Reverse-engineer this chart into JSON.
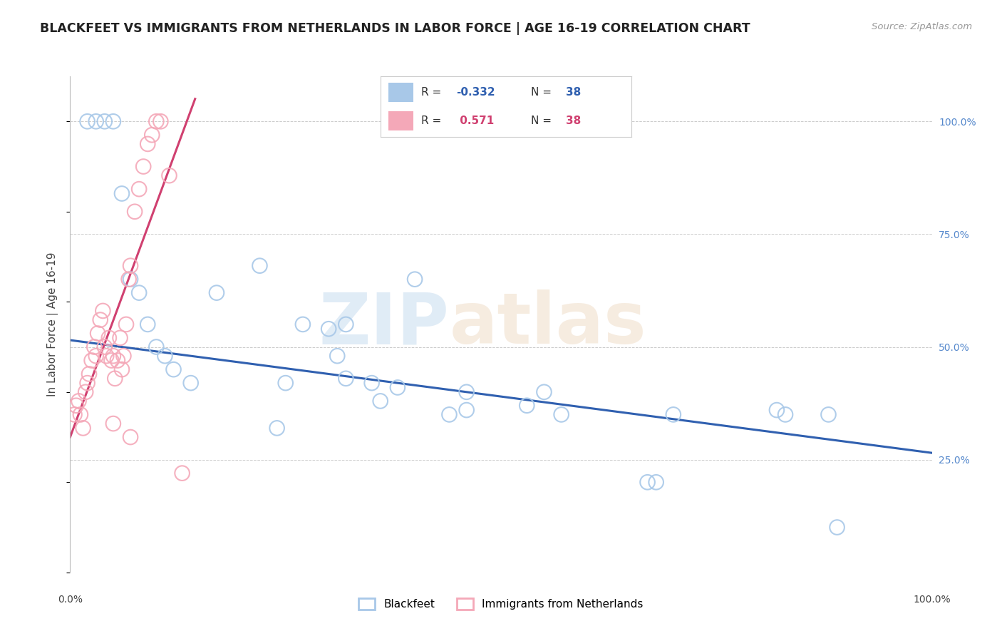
{
  "title": "BLACKFEET VS IMMIGRANTS FROM NETHERLANDS IN LABOR FORCE | AGE 16-19 CORRELATION CHART",
  "source": "Source: ZipAtlas.com",
  "ylabel": "In Labor Force | Age 16-19",
  "watermark_zip": "ZIP",
  "watermark_atlas": "atlas",
  "r_blue": "-0.332",
  "r_pink": "0.571",
  "n_blue": "38",
  "n_pink": "38",
  "legend_series": [
    {
      "name": "Blackfeet",
      "color": "#a8c8e8"
    },
    {
      "name": "Immigrants from Netherlands",
      "color": "#f4a8b8"
    }
  ],
  "blue_scatter_x": [
    0.02,
    0.03,
    0.04,
    0.05,
    0.06,
    0.07,
    0.08,
    0.09,
    0.1,
    0.11,
    0.12,
    0.14,
    0.17,
    0.22,
    0.27,
    0.3,
    0.31,
    0.32,
    0.36,
    0.4,
    0.44,
    0.46,
    0.53,
    0.57,
    0.7,
    0.82,
    0.83,
    0.88,
    0.89,
    0.35,
    0.55,
    0.67,
    0.68,
    0.24,
    0.25,
    0.38,
    0.32,
    0.46
  ],
  "blue_scatter_y": [
    1.0,
    1.0,
    1.0,
    1.0,
    0.84,
    0.65,
    0.62,
    0.55,
    0.5,
    0.48,
    0.45,
    0.42,
    0.62,
    0.68,
    0.55,
    0.54,
    0.48,
    0.43,
    0.38,
    0.65,
    0.35,
    0.4,
    0.37,
    0.35,
    0.35,
    0.36,
    0.35,
    0.35,
    0.1,
    0.42,
    0.4,
    0.2,
    0.2,
    0.32,
    0.42,
    0.41,
    0.55,
    0.36
  ],
  "pink_scatter_x": [
    0.005,
    0.007,
    0.01,
    0.012,
    0.015,
    0.018,
    0.02,
    0.022,
    0.025,
    0.028,
    0.03,
    0.032,
    0.035,
    0.038,
    0.04,
    0.042,
    0.045,
    0.048,
    0.05,
    0.052,
    0.055,
    0.058,
    0.06,
    0.062,
    0.065,
    0.068,
    0.07,
    0.075,
    0.08,
    0.085,
    0.09,
    0.095,
    0.1,
    0.105,
    0.115,
    0.13,
    0.05,
    0.07
  ],
  "pink_scatter_y": [
    0.35,
    0.37,
    0.38,
    0.35,
    0.32,
    0.4,
    0.42,
    0.44,
    0.47,
    0.5,
    0.48,
    0.53,
    0.56,
    0.58,
    0.5,
    0.48,
    0.52,
    0.47,
    0.48,
    0.43,
    0.47,
    0.52,
    0.45,
    0.48,
    0.55,
    0.65,
    0.68,
    0.8,
    0.85,
    0.9,
    0.95,
    0.97,
    1.0,
    1.0,
    0.88,
    0.22,
    0.33,
    0.3
  ],
  "blue_line_x": [
    0.0,
    1.0
  ],
  "blue_line_y": [
    0.515,
    0.265
  ],
  "pink_line_x": [
    0.0,
    0.145
  ],
  "pink_line_y": [
    0.3,
    1.05
  ],
  "yticks": [
    0.25,
    0.5,
    0.75,
    1.0
  ],
  "ytick_labels": [
    "25.0%",
    "50.0%",
    "75.0%",
    "100.0%"
  ],
  "xlim": [
    0.0,
    1.0
  ],
  "ylim": [
    0.0,
    1.1
  ],
  "blue_color": "#a8c8e8",
  "pink_color": "#f4a8b8",
  "blue_line_color": "#3060b0",
  "pink_line_color": "#d04070",
  "background_color": "#ffffff",
  "grid_color": "#cccccc"
}
